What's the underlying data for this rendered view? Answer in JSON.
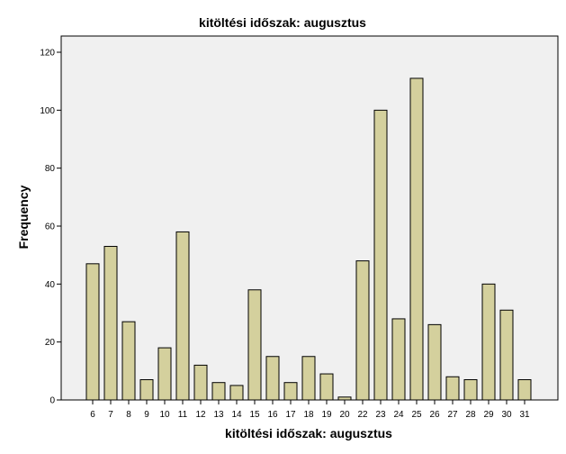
{
  "chart_data": {
    "type": "bar",
    "title": "kitöltési időszak: augusztus",
    "xlabel": "kitöltési időszak: augusztus",
    "ylabel": "Frequency",
    "ylim": [
      0,
      120
    ],
    "yticks": [
      "0",
      "20",
      "40",
      "60",
      "80",
      "100",
      "120"
    ],
    "categories": [
      "6",
      "7",
      "8",
      "9",
      "10",
      "11",
      "12",
      "13",
      "14",
      "15",
      "16",
      "17",
      "18",
      "19",
      "20",
      "22",
      "23",
      "24",
      "25",
      "26",
      "27",
      "28",
      "29",
      "30",
      "31"
    ],
    "values": [
      47,
      53,
      27,
      7,
      18,
      58,
      12,
      6,
      5,
      38,
      15,
      6,
      15,
      9,
      1,
      48,
      100,
      28,
      111,
      26,
      8,
      7,
      40,
      31,
      7
    ],
    "colors": {
      "bar_fill": "#d4d09d",
      "bar_stroke": "#000000",
      "plot_background": "#f0f0f0",
      "frame": "#000000"
    }
  }
}
